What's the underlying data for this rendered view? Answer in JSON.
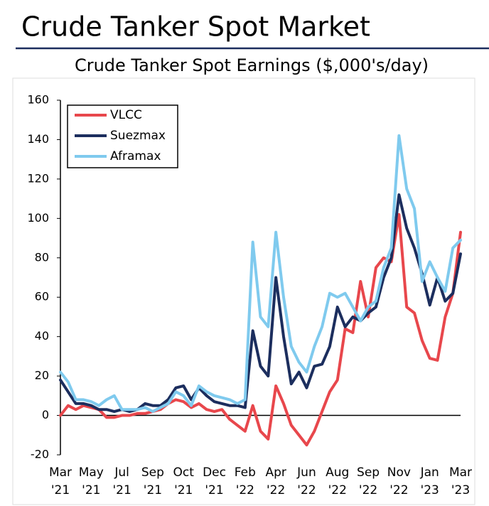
{
  "header": {
    "title": "Crude Tanker Spot Market"
  },
  "chart_data": {
    "type": "line",
    "title": "Crude Tanker Spot Earnings ($,000's/day)",
    "categories": [
      [
        "Mar",
        "'21"
      ],
      null,
      null,
      null,
      [
        "May",
        "'21"
      ],
      null,
      null,
      null,
      [
        "Jul",
        "'21"
      ],
      null,
      null,
      null,
      [
        "Sep",
        "'21"
      ],
      null,
      null,
      null,
      [
        "Oct",
        "'21"
      ],
      null,
      null,
      null,
      [
        "Dec",
        "'21"
      ],
      null,
      null,
      null,
      [
        "Feb",
        "'22"
      ],
      null,
      null,
      null,
      [
        "Apr",
        "'22"
      ],
      null,
      null,
      null,
      [
        "Jun",
        "'22"
      ],
      null,
      null,
      null,
      [
        "Aug",
        "'22"
      ],
      null,
      null,
      null,
      [
        "Sep",
        "'22"
      ],
      null,
      null,
      null,
      [
        "Nov",
        "'22"
      ],
      null,
      null,
      null,
      [
        "Jan",
        "'23"
      ],
      null,
      null,
      null,
      [
        "Mar",
        "'23"
      ]
    ],
    "series": [
      {
        "name": "VLCC",
        "color": "#e8474c",
        "values": [
          0,
          5,
          3,
          5,
          4,
          3,
          -1,
          -1,
          0,
          0,
          1,
          1,
          2,
          3,
          6,
          8,
          7,
          4,
          6,
          3,
          2,
          3,
          -2,
          -5,
          -8,
          5,
          -8,
          -12,
          15,
          6,
          -5,
          -10,
          -15,
          -8,
          2,
          12,
          18,
          44,
          42,
          68,
          50,
          75,
          80,
          78,
          102,
          55,
          52,
          38,
          29,
          28,
          50,
          62,
          93
        ]
      },
      {
        "name": "Suezmax",
        "color": "#1c2e5e",
        "values": [
          18,
          12,
          6,
          6,
          5,
          3,
          3,
          2,
          3,
          2,
          3,
          6,
          5,
          5,
          8,
          14,
          15,
          8,
          14,
          10,
          7,
          6,
          5,
          5,
          4,
          43,
          25,
          20,
          70,
          40,
          16,
          22,
          14,
          25,
          26,
          35,
          55,
          45,
          50,
          48,
          52,
          55,
          70,
          80,
          112,
          95,
          85,
          72,
          56,
          70,
          58,
          62,
          82
        ]
      },
      {
        "name": "Aframax",
        "color": "#7fcaee",
        "values": [
          22,
          17,
          8,
          8,
          7,
          5,
          8,
          10,
          3,
          3,
          3,
          4,
          2,
          4,
          6,
          12,
          10,
          5,
          15,
          12,
          10,
          9,
          8,
          6,
          8,
          88,
          50,
          45,
          93,
          60,
          35,
          27,
          22,
          35,
          45,
          62,
          60,
          62,
          55,
          48,
          55,
          58,
          75,
          85,
          142,
          115,
          105,
          68,
          78,
          70,
          63,
          85,
          89
        ]
      }
    ],
    "ylim": [
      -20,
      160
    ],
    "yticks": [
      -20,
      0,
      20,
      40,
      60,
      80,
      100,
      120,
      140,
      160
    ],
    "legend": "upper left"
  }
}
